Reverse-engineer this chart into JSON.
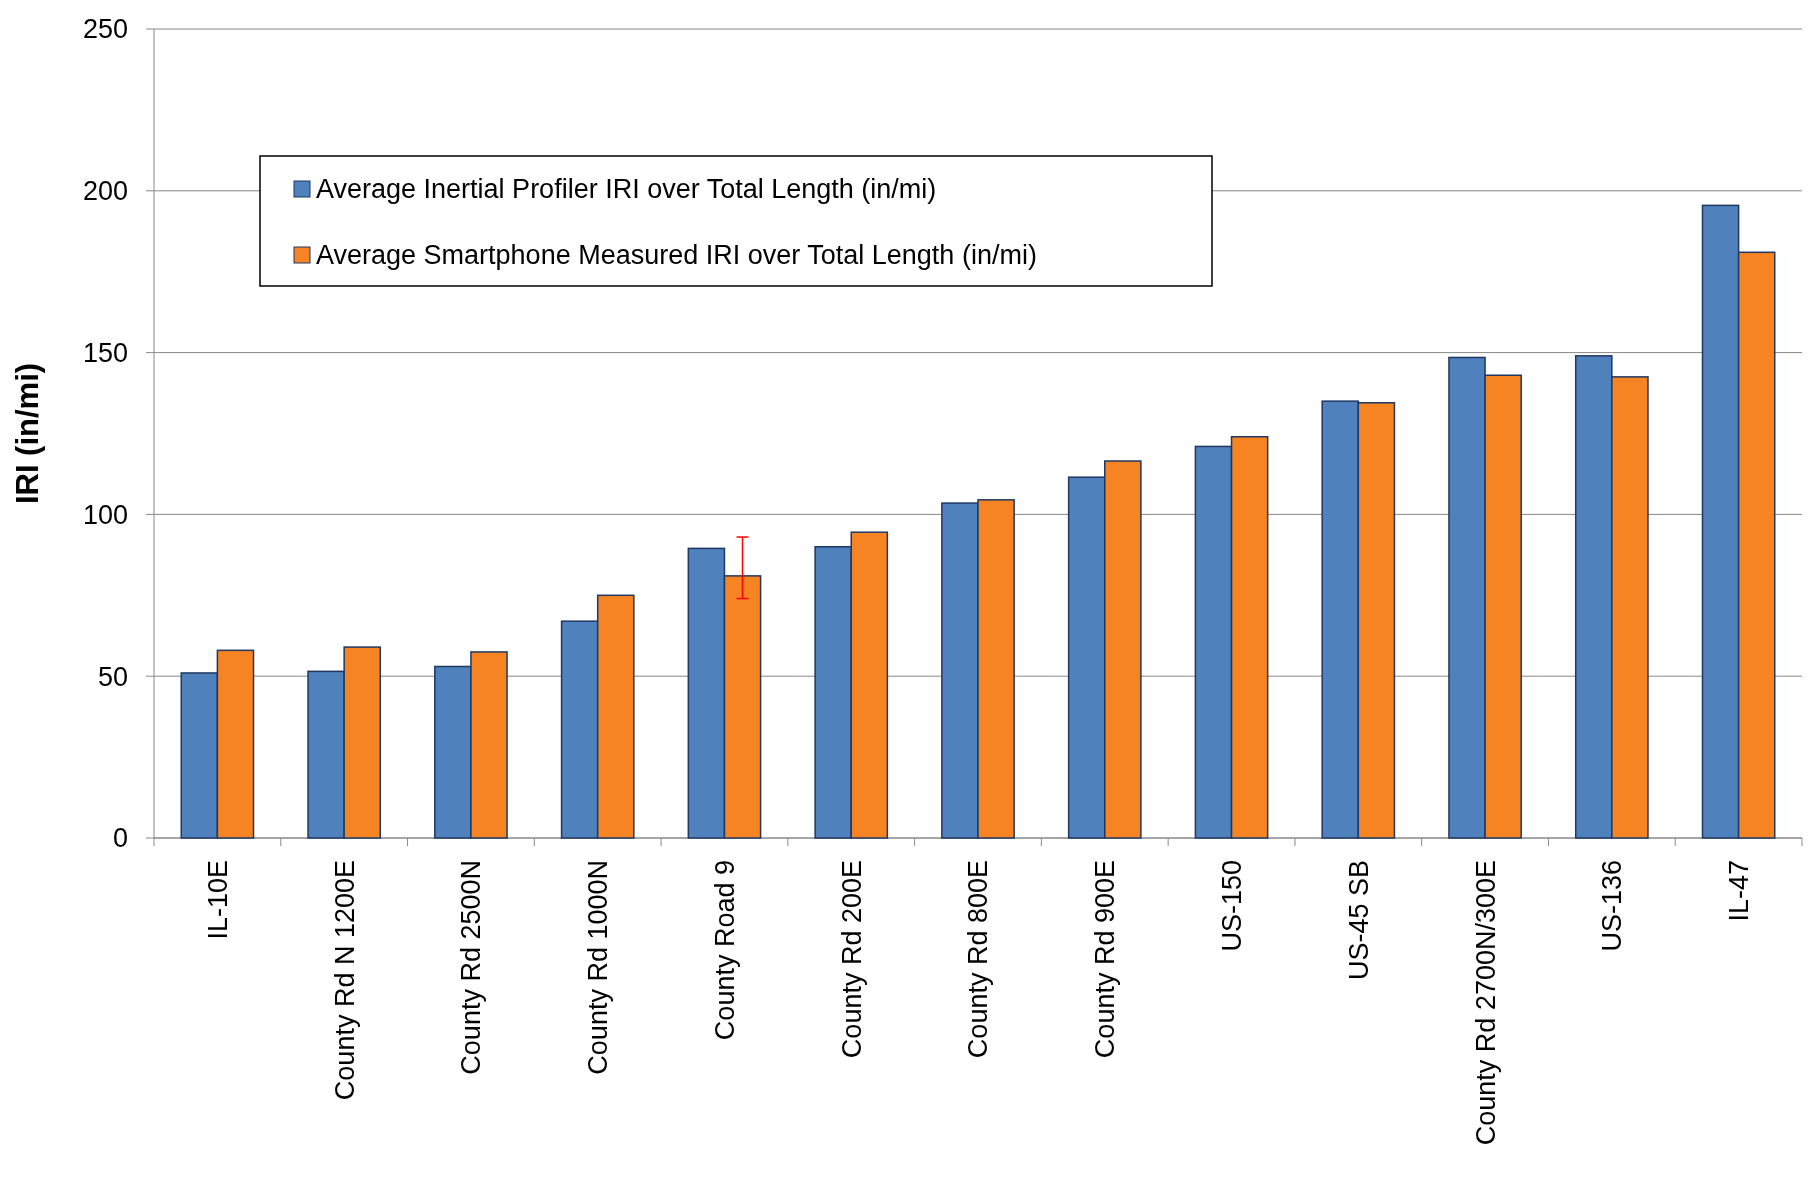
{
  "chart_data": {
    "type": "bar",
    "ylabel": "IRI (in/mi)",
    "categories": [
      "IL-10E",
      "County Rd N 1200E",
      "County Rd 2500N",
      "County Rd 1000N",
      "County Road 9",
      "County Rd 200E",
      "County Rd 800E",
      "County Rd 900E",
      "US-150",
      "US-45 SB",
      "County Rd 2700N/300E",
      "US-136",
      "IL-47"
    ],
    "series": [
      {
        "name": "Average Inertial Profiler IRI over Total Length (in/mi)",
        "color": "#4f81bd",
        "values": [
          51,
          51.5,
          53,
          67,
          89.5,
          90,
          103.5,
          111.5,
          121,
          135,
          148.5,
          149,
          195.5
        ]
      },
      {
        "name": "Average Smartphone Measured IRI over Total Length (in/mi)",
        "color": "#f68423",
        "values": [
          58,
          59,
          57.5,
          75,
          81,
          94.5,
          104.5,
          116.5,
          124,
          134.5,
          143,
          142.5,
          181
        ],
        "errors": [
          null,
          null,
          null,
          null,
          [
            74,
            93
          ],
          null,
          null,
          null,
          null,
          null,
          null,
          null,
          null
        ]
      }
    ],
    "ylim": [
      0,
      250
    ],
    "yticks": [
      0,
      50,
      100,
      150,
      200,
      250
    ],
    "grid": "y",
    "legend": "top left"
  }
}
